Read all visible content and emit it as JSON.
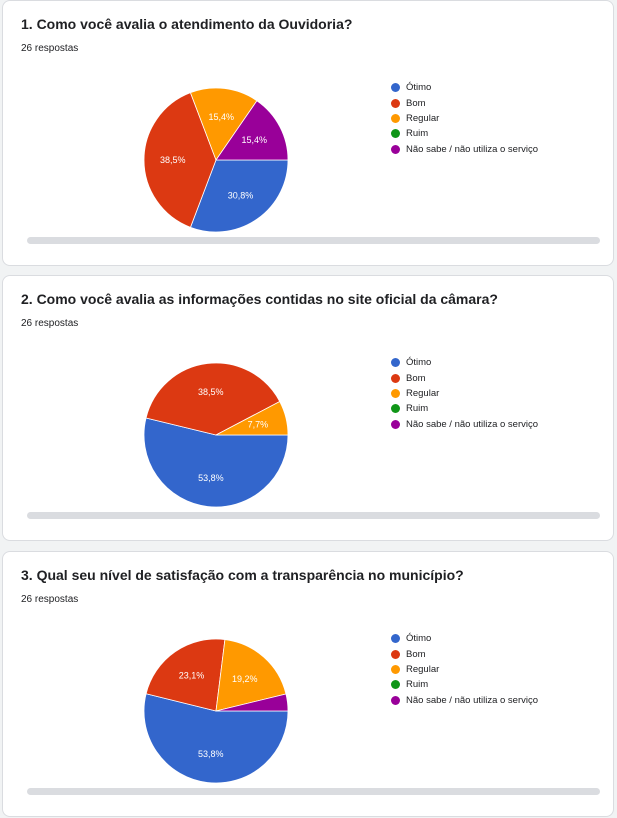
{
  "colors": {
    "otimo": "#3366cc",
    "bom": "#dc3912",
    "regular": "#ff9900",
    "ruim": "#109618",
    "nao_sabe": "#990099"
  },
  "chart_data": [
    {
      "type": "pie",
      "title": "1. Como você avalia o atendimento da Ouvidoria?",
      "subtitle": "26 respostas",
      "categories": [
        "Ótimo",
        "Bom",
        "Regular",
        "Ruim",
        "Não sabe / não utiliza o serviço"
      ],
      "values": [
        30.8,
        38.5,
        15.4,
        0,
        15.4
      ],
      "data_labels": [
        "30,8%",
        "38,5%",
        "15,4%",
        "",
        "15,4%"
      ],
      "legend": "right"
    },
    {
      "type": "pie",
      "title": "2. Como você avalia as informações contidas no site oficial da câmara?",
      "subtitle": "26 respostas",
      "categories": [
        "Ótimo",
        "Bom",
        "Regular",
        "Ruim",
        "Não sabe / não utiliza o serviço"
      ],
      "values": [
        53.8,
        38.5,
        7.7,
        0,
        0
      ],
      "data_labels": [
        "53,8%",
        "38,5%",
        "7,7%",
        "",
        ""
      ],
      "legend": "right"
    },
    {
      "type": "pie",
      "title": "3. Qual seu nível de satisfação com a transparência no município?",
      "subtitle": "26 respostas",
      "categories": [
        "Ótimo",
        "Bom",
        "Regular",
        "Ruim",
        "Não sabe / não utiliza o serviço"
      ],
      "values": [
        53.8,
        23.1,
        19.2,
        0,
        3.8
      ],
      "data_labels": [
        "53,8%",
        "23,1%",
        "19,2%",
        "",
        ""
      ],
      "legend": "right"
    }
  ]
}
